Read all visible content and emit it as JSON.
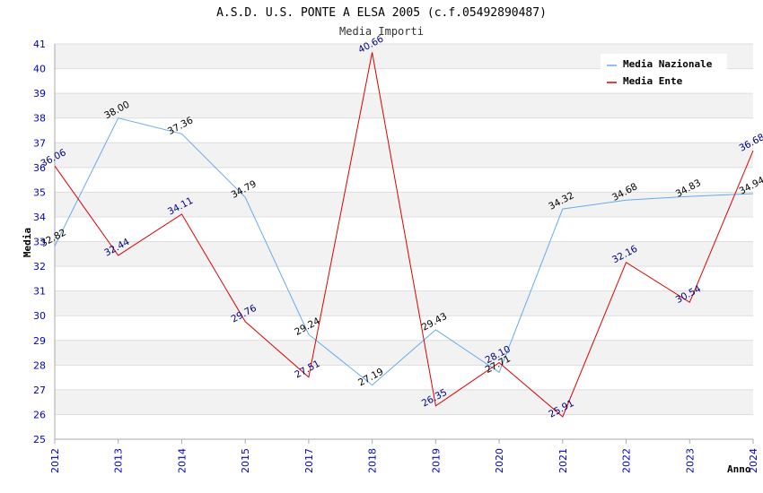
{
  "chart_data": {
    "type": "line",
    "title": "A.S.D. U.S. PONTE A ELSA 2005 (c.f.05492890487)",
    "subtitle": "Media Importi",
    "xlabel": "Anno",
    "ylabel": "Media",
    "categories": [
      "2012",
      "2013",
      "2014",
      "2015",
      "2017",
      "2018",
      "2019",
      "2020",
      "2021",
      "2022",
      "2023",
      "2024"
    ],
    "ylim": [
      25,
      41
    ],
    "yticks": [
      25,
      26,
      27,
      28,
      29,
      30,
      31,
      32,
      33,
      34,
      35,
      36,
      37,
      38,
      39,
      40,
      41
    ],
    "grid": true,
    "legend_position": "top-right",
    "series": [
      {
        "name": "Media Nazionale",
        "color": "#66aaee",
        "label_color": "#000000",
        "values": [
          32.82,
          38.0,
          37.36,
          34.79,
          29.24,
          27.19,
          29.43,
          27.71,
          34.32,
          34.68,
          34.83,
          34.94
        ],
        "labels": [
          "32.82",
          "38.00",
          "37.36",
          "34.79",
          "29.24",
          "27.19",
          "29.43",
          "27.71",
          "34.32",
          "34.68",
          "34.83",
          "34.94"
        ]
      },
      {
        "name": "Media Ente",
        "color": "#dd0000",
        "label_color": "#000080",
        "values": [
          36.06,
          32.44,
          34.11,
          29.76,
          27.51,
          40.66,
          26.35,
          28.1,
          25.91,
          32.16,
          30.54,
          36.68
        ],
        "labels": [
          "36.06",
          "32.44",
          "34.11",
          "29.76",
          "27.51",
          "40.66",
          "26.35",
          "28.10",
          "25.91",
          "32.16",
          "30.54",
          "36.68"
        ]
      }
    ]
  }
}
